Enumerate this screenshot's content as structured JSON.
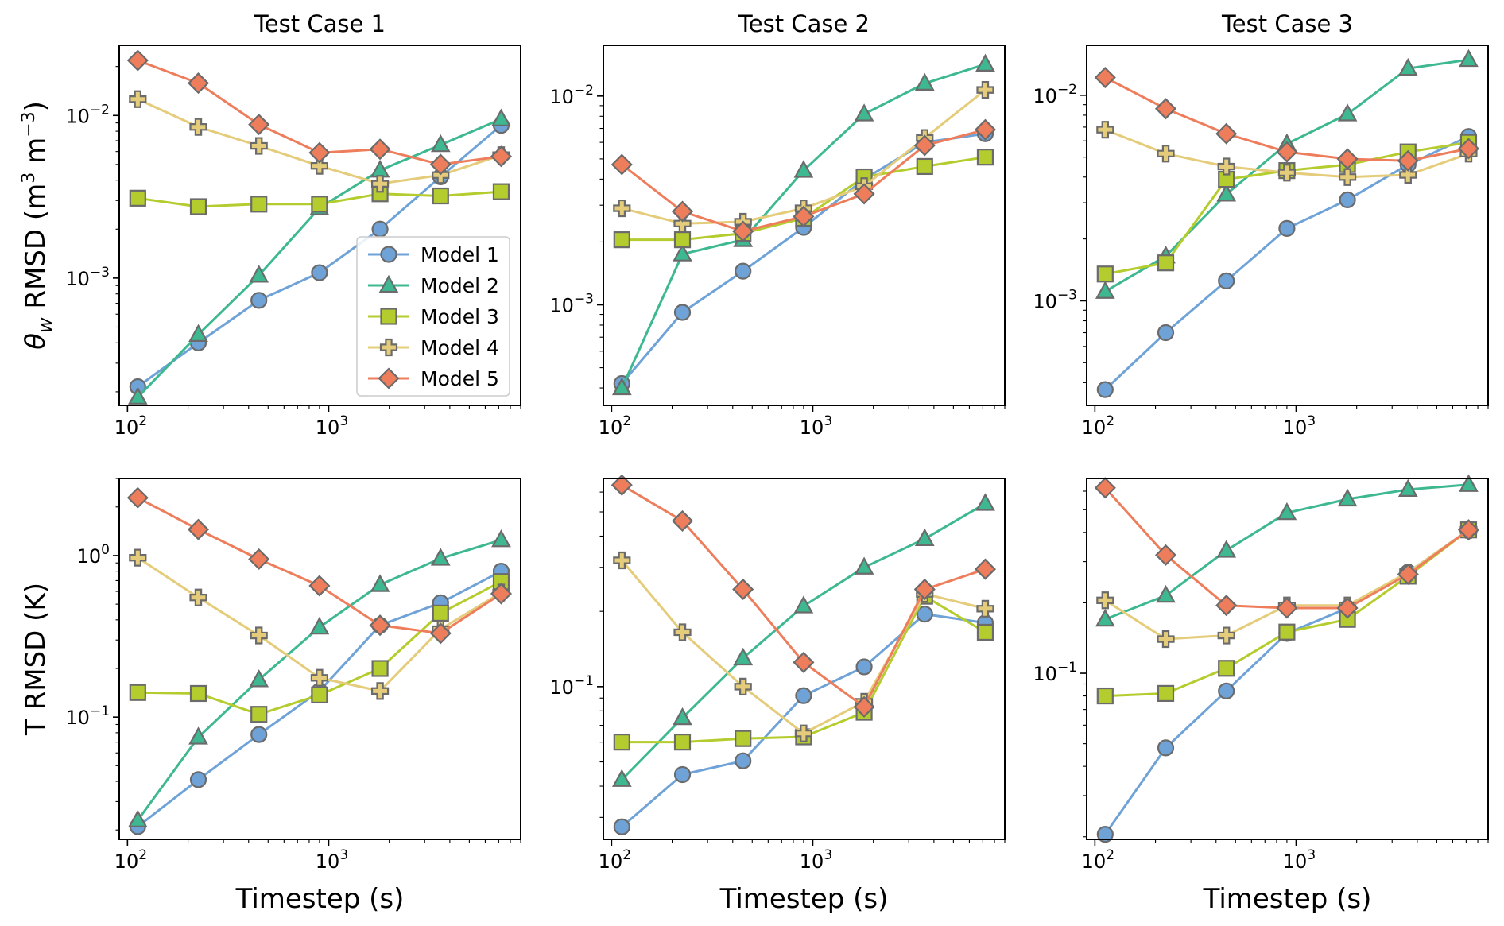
{
  "chart_data": {
    "type": "line",
    "scale": "log-log",
    "x": [
      112.5,
      225,
      450,
      900,
      1800,
      3600,
      7200
    ],
    "xlabel": "Timestep (s)",
    "xticks": [
      {
        "value": 100,
        "label": "10",
        "exp": "2"
      },
      {
        "value": 1000,
        "label": "10",
        "exp": "3"
      }
    ],
    "legend": {
      "position": "inside lower-right of top-left panel"
    },
    "series_meta": [
      {
        "name": "Model 1",
        "color": "#6fa3d8",
        "marker": "circle"
      },
      {
        "name": "Model 2",
        "color": "#3db891",
        "marker": "triangle"
      },
      {
        "name": "Model 3",
        "color": "#b5cc2e",
        "marker": "square"
      },
      {
        "name": "Model 4",
        "color": "#e4cc7a",
        "marker": "plus"
      },
      {
        "name": "Model 5",
        "color": "#ee7d5c",
        "marker": "diamond"
      }
    ],
    "rows": [
      {
        "ylabel": {
          "main": "θ",
          "sub": "w",
          "rest": " RMSD (m",
          "sup1": "3",
          "mid": " m",
          "sup2": "−3",
          "end": ")"
        },
        "panels": [
          {
            "title": "Test Case 1",
            "ylim": [
              0.000165,
              0.027
            ],
            "yticks": [
              {
                "value": 0.001,
                "label": "10",
                "exp": "−3"
              },
              {
                "value": 0.01,
                "label": "10",
                "exp": "−2"
              }
            ],
            "series": [
              {
                "name": "Model 1",
                "values": [
                  0.000215,
                  0.0004,
                  0.00073,
                  0.00108,
                  0.002,
                  0.0042,
                  0.0087
                ]
              },
              {
                "name": "Model 2",
                "values": [
                  0.000185,
                  0.00045,
                  0.00104,
                  0.0027,
                  0.0046,
                  0.0066,
                  0.0095
                ]
              },
              {
                "name": "Model 3",
                "values": [
                  0.0031,
                  0.00275,
                  0.00285,
                  0.00285,
                  0.0033,
                  0.0032,
                  0.0034
                ]
              },
              {
                "name": "Model 4",
                "values": [
                  0.0126,
                  0.0085,
                  0.0065,
                  0.0049,
                  0.0038,
                  0.0043,
                  0.0057
                ]
              },
              {
                "name": "Model 5",
                "values": [
                  0.0218,
                  0.0158,
                  0.0088,
                  0.0059,
                  0.0062,
                  0.005,
                  0.0056
                ]
              }
            ]
          },
          {
            "title": "Test Case 2",
            "ylim": [
              0.00033,
              0.0175
            ],
            "yticks": [
              {
                "value": 0.001,
                "label": "10",
                "exp": "−3"
              },
              {
                "value": 0.01,
                "label": "10",
                "exp": "−2"
              }
            ],
            "series": [
              {
                "name": "Model 1",
                "values": [
                  0.00042,
                  0.00092,
                  0.00145,
                  0.00235,
                  0.004,
                  0.006,
                  0.0066
                ]
              },
              {
                "name": "Model 2",
                "values": [
                  0.0004,
                  0.00175,
                  0.00205,
                  0.0044,
                  0.0082,
                  0.0115,
                  0.0142
                ]
              },
              {
                "name": "Model 3",
                "values": [
                  0.00205,
                  0.00205,
                  0.0022,
                  0.0026,
                  0.0041,
                  0.0046,
                  0.0051
                ]
              },
              {
                "name": "Model 4",
                "values": [
                  0.0029,
                  0.00245,
                  0.0025,
                  0.0029,
                  0.0037,
                  0.0063,
                  0.0107
                ]
              },
              {
                "name": "Model 5",
                "values": [
                  0.0047,
                  0.0028,
                  0.00225,
                  0.00265,
                  0.0034,
                  0.0058,
                  0.0069
                ]
              }
            ]
          },
          {
            "title": "Test Case 3",
            "ylim": [
              0.00031,
              0.0175
            ],
            "yticks": [
              {
                "value": 0.001,
                "label": "10",
                "exp": "−3"
              },
              {
                "value": 0.01,
                "label": "10",
                "exp": "−2"
              }
            ],
            "series": [
              {
                "name": "Model 1",
                "values": [
                  0.00037,
                  0.0007,
                  0.00125,
                  0.00225,
                  0.0031,
                  0.0046,
                  0.0063
                ]
              },
              {
                "name": "Model 2",
                "values": [
                  0.00111,
                  0.00165,
                  0.0033,
                  0.0058,
                  0.0081,
                  0.0135,
                  0.0149
                ]
              },
              {
                "name": "Model 3",
                "values": [
                  0.00135,
                  0.00153,
                  0.0039,
                  0.0043,
                  0.0046,
                  0.0053,
                  0.0059
                ]
              },
              {
                "name": "Model 4",
                "values": [
                  0.0068,
                  0.0052,
                  0.0045,
                  0.0042,
                  0.004,
                  0.0041,
                  0.0052
                ]
              },
              {
                "name": "Model 5",
                "values": [
                  0.0122,
                  0.0086,
                  0.0065,
                  0.0053,
                  0.0049,
                  0.0048,
                  0.0055
                ]
              }
            ]
          }
        ]
      },
      {
        "ylabel": {
          "main": "T RMSD (K)"
        },
        "panels": [
          {
            "title": "",
            "ylim": [
              0.0175,
              3.0
            ],
            "yticks": [
              {
                "value": 0.1,
                "label": "10",
                "exp": "−1"
              },
              {
                "value": 1,
                "label": "10",
                "exp": "0"
              }
            ],
            "series": [
              {
                "name": "Model 1",
                "values": [
                  0.021,
                  0.041,
                  0.078,
                  0.145,
                  0.37,
                  0.51,
                  0.8
                ]
              },
              {
                "name": "Model 2",
                "values": [
                  0.023,
                  0.075,
                  0.17,
                  0.36,
                  0.66,
                  0.96,
                  1.25
                ]
              },
              {
                "name": "Model 3",
                "values": [
                  0.142,
                  0.14,
                  0.104,
                  0.137,
                  0.2,
                  0.44,
                  0.69
                ]
              },
              {
                "name": "Model 4",
                "values": [
                  0.97,
                  0.55,
                  0.32,
                  0.175,
                  0.145,
                  0.35,
                  0.59
                ]
              },
              {
                "name": "Model 5",
                "values": [
                  2.28,
                  1.45,
                  0.95,
                  0.65,
                  0.37,
                  0.33,
                  0.58
                ]
              }
            ]
          },
          {
            "title": "",
            "ylim": [
              0.0245,
              0.68
            ],
            "yticks": [
              {
                "value": 0.1,
                "label": "10",
                "exp": "−1"
              }
            ],
            "series": [
              {
                "name": "Model 1",
                "values": [
                  0.0275,
                  0.0445,
                  0.0505,
                  0.092,
                  0.12,
                  0.195,
                  0.18
                ]
              },
              {
                "name": "Model 2",
                "values": [
                  0.0425,
                  0.075,
                  0.13,
                  0.21,
                  0.3,
                  0.39,
                  0.54
                ]
              },
              {
                "name": "Model 3",
                "values": [
                  0.06,
                  0.06,
                  0.062,
                  0.063,
                  0.079,
                  0.23,
                  0.165
                ]
              },
              {
                "name": "Model 4",
                "values": [
                  0.32,
                  0.165,
                  0.1,
                  0.065,
                  0.087,
                  0.235,
                  0.205
                ]
              },
              {
                "name": "Model 5",
                "values": [
                  0.64,
                  0.46,
                  0.245,
                  0.125,
                  0.083,
                  0.245,
                  0.295
                ]
              }
            ]
          },
          {
            "title": "",
            "ylim": [
              0.0195,
              0.68
            ],
            "yticks": [
              {
                "value": 0.1,
                "label": "10",
                "exp": "−1"
              }
            ],
            "series": [
              {
                "name": "Model 1",
                "values": [
                  0.0205,
                  0.048,
                  0.084,
                  0.148,
                  0.19,
                  0.27,
                  0.41
                ]
              },
              {
                "name": "Model 2",
                "values": [
                  0.17,
                  0.215,
                  0.335,
                  0.485,
                  0.555,
                  0.61,
                  0.64
                ]
              },
              {
                "name": "Model 3",
                "values": [
                  0.08,
                  0.082,
                  0.105,
                  0.15,
                  0.17,
                  0.26,
                  0.41
                ]
              },
              {
                "name": "Model 4",
                "values": [
                  0.205,
                  0.14,
                  0.145,
                  0.195,
                  0.195,
                  0.27,
                  0.41
                ]
              },
              {
                "name": "Model 5",
                "values": [
                  0.62,
                  0.32,
                  0.195,
                  0.19,
                  0.19,
                  0.265,
                  0.41
                ]
              }
            ]
          }
        ]
      }
    ]
  }
}
